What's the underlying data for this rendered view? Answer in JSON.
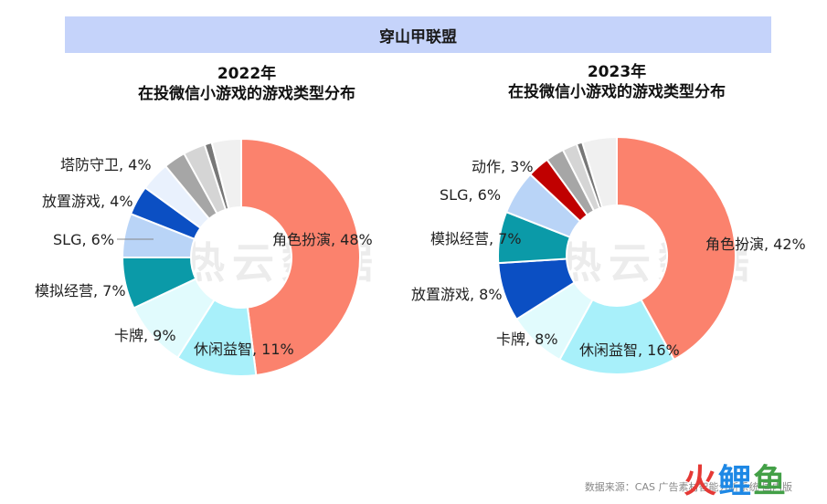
{
  "banner": {
    "title": "穿山甲联盟"
  },
  "watermark": "热云数据",
  "source": "数据来源：CAS 广告素材智能分析系统 国内版",
  "logo": {
    "part1": "火",
    "part2": "鲤",
    "part3": "鱼"
  },
  "chart_data": [
    {
      "type": "pie",
      "title_line1": "2022年",
      "title_line2": "在投微信小游戏的游戏类型分布",
      "slices": [
        {
          "label": "角色扮演",
          "value": 48,
          "text": "角色扮演, 48%",
          "color": "#fb826d",
          "show_label": true
        },
        {
          "label": "休闲益智",
          "value": 11,
          "text": "休闲益智, 11%",
          "color": "#a8f0fa",
          "show_label": true
        },
        {
          "label": "卡牌",
          "value": 9,
          "text": "卡牌, 9%",
          "color": "#e1fbfd",
          "show_label": true
        },
        {
          "label": "模拟经营",
          "value": 7,
          "text": "模拟经营, 7%",
          "color": "#0b9aa8",
          "show_label": true
        },
        {
          "label": "SLG",
          "value": 6,
          "text": "SLG, 6%",
          "color": "#b9d4f7",
          "show_label": true
        },
        {
          "label": "放置游戏",
          "value": 4,
          "text": "放置游戏, 4%",
          "color": "#0b4fc3",
          "show_label": true
        },
        {
          "label": "塔防守卫",
          "value": 4,
          "text": "塔防守卫, 4%",
          "color": "#e9f1fd",
          "show_label": true
        },
        {
          "label": "",
          "value": 3,
          "text": "",
          "color": "#a6a6a6",
          "show_label": false
        },
        {
          "label": "",
          "value": 3,
          "text": "",
          "color": "#d5d5d5",
          "show_label": false
        },
        {
          "label": "",
          "value": 1,
          "text": "",
          "color": "#777777",
          "show_label": false
        },
        {
          "label": "",
          "value": 4,
          "text": "",
          "color": "#f0f0f0",
          "show_label": false
        }
      ]
    },
    {
      "type": "pie",
      "title_line1": "2023年",
      "title_line2": "在投微信小游戏的游戏类型分布",
      "slices": [
        {
          "label": "角色扮演",
          "value": 42,
          "text": "角色扮演, 42%",
          "color": "#fb826d",
          "show_label": true
        },
        {
          "label": "休闲益智",
          "value": 16,
          "text": "休闲益智, 16%",
          "color": "#a8f0fa",
          "show_label": true
        },
        {
          "label": "卡牌",
          "value": 8,
          "text": "卡牌, 8%",
          "color": "#e1fbfd",
          "show_label": true
        },
        {
          "label": "放置游戏",
          "value": 8,
          "text": "放置游戏, 8%",
          "color": "#0b4fc3",
          "show_label": true
        },
        {
          "label": "模拟经营",
          "value": 7,
          "text": "模拟经营, 7%",
          "color": "#0b9aa8",
          "show_label": true
        },
        {
          "label": "SLG",
          "value": 6,
          "text": "SLG, 6%",
          "color": "#b9d4f7",
          "show_label": true
        },
        {
          "label": "动作",
          "value": 3,
          "text": "动作, 3%",
          "color": "#c00000",
          "show_label": true
        },
        {
          "label": "",
          "value": 2.5,
          "text": "",
          "color": "#a6a6a6",
          "show_label": false
        },
        {
          "label": "",
          "value": 2,
          "text": "",
          "color": "#d5d5d5",
          "show_label": false
        },
        {
          "label": "",
          "value": 0.8,
          "text": "",
          "color": "#777777",
          "show_label": false
        },
        {
          "label": "",
          "value": 4.7,
          "text": "",
          "color": "#f0f0f0",
          "show_label": false
        }
      ]
    }
  ]
}
